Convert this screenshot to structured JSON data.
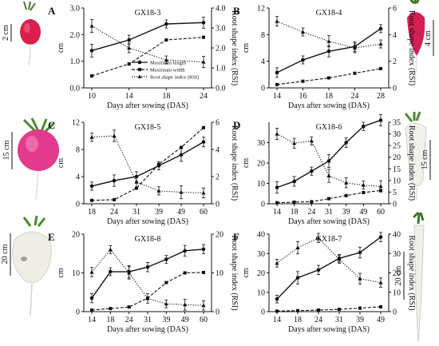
{
  "colors": {
    "line": "#111111",
    "background": "#ffffff"
  },
  "legend": [
    "Maximum length",
    "Maximum width",
    "Root shape index (RSI)"
  ],
  "photos": [
    {
      "scale": "2 cm",
      "root": "radish-small-red-icon"
    },
    {
      "scale": "4 cm",
      "root": "radish-long-red-icon"
    },
    {
      "scale": "15 cm",
      "root": "radish-round-pink-icon"
    },
    {
      "scale": "15 cm",
      "root": "radish-white-long-icon"
    },
    {
      "scale": "20 cm",
      "root": "radish-white-round-icon"
    },
    {
      "scale": "20 cm",
      "root": "radish-white-very-long-icon"
    }
  ],
  "chart_data": [
    {
      "type": "line",
      "panel_letter": "A",
      "title": "GX18-3",
      "xlabel": "Days after sowing (DAS)",
      "ylabel": "cm",
      "y2label": "Root shape index (RSI)",
      "x": [
        "10",
        "14",
        "18",
        "24"
      ],
      "ylim": [
        0,
        3.0
      ],
      "yticks": [
        "0.0",
        "1.0",
        "2.0",
        "3.0"
      ],
      "y2lim": [
        0,
        4.0
      ],
      "y2ticks": [
        "0.0",
        "1.0",
        "2.0",
        "3.0",
        "4.0"
      ],
      "legend_position": "center-right",
      "series": [
        {
          "name": "Maximum length",
          "axis": "left",
          "style": "solid",
          "marker": "circle",
          "values": [
            1.4,
            1.8,
            2.4,
            2.45
          ]
        },
        {
          "name": "Maximum width",
          "axis": "left",
          "style": "dashed",
          "marker": "square",
          "values": [
            0.45,
            0.9,
            1.8,
            1.9
          ]
        },
        {
          "name": "Root shape index (RSI)",
          "axis": "right",
          "style": "dotted",
          "marker": "triangle",
          "values": [
            3.1,
            2.0,
            1.4,
            1.3
          ]
        }
      ]
    },
    {
      "type": "line",
      "panel_letter": "B",
      "title": "GX18-4",
      "xlabel": "Days after sowing (DAS)",
      "ylabel": "cm",
      "y2label": "Root shape index (RSI)",
      "x": [
        "14",
        "16",
        "18",
        "24",
        "28"
      ],
      "ylim": [
        0,
        12
      ],
      "yticks": [
        "0",
        "4",
        "8",
        "12"
      ],
      "y2lim": [
        0,
        6
      ],
      "y2ticks": [
        "0",
        "2",
        "4",
        "6"
      ],
      "series": [
        {
          "name": "Maximum length",
          "axis": "left",
          "style": "solid",
          "marker": "circle",
          "values": [
            2.3,
            4.2,
            5.5,
            6.2,
            8.9
          ]
        },
        {
          "name": "Maximum width",
          "axis": "left",
          "style": "dashed",
          "marker": "square",
          "values": [
            0.5,
            1.0,
            1.5,
            2.2,
            2.9
          ]
        },
        {
          "name": "Root shape index (RSI)",
          "axis": "right",
          "style": "dotted",
          "marker": "triangle",
          "values": [
            5.0,
            4.2,
            3.5,
            3.0,
            3.3
          ]
        }
      ]
    },
    {
      "type": "line",
      "panel_letter": "C",
      "title": "GX18-5",
      "xlabel": "Days after sowing (DAS)",
      "ylabel": "cm",
      "y2label": "Root shape index (RSI)",
      "x": [
        "18",
        "24",
        "31",
        "39",
        "49",
        "60"
      ],
      "ylim": [
        0,
        12
      ],
      "yticks": [
        "0",
        "4",
        "8",
        "12"
      ],
      "y2lim": [
        0,
        6
      ],
      "y2ticks": [
        "0",
        "2",
        "4",
        "6"
      ],
      "series": [
        {
          "name": "Maximum length",
          "axis": "left",
          "style": "solid",
          "marker": "circle",
          "values": [
            2.6,
            3.4,
            4.0,
            5.6,
            7.2,
            9.1
          ]
        },
        {
          "name": "Maximum width",
          "axis": "left",
          "style": "dashed",
          "marker": "square",
          "values": [
            0.5,
            0.6,
            2.3,
            5.8,
            8.3,
            11.2
          ]
        },
        {
          "name": "Root shape index (RSI)",
          "axis": "right",
          "style": "dotted",
          "marker": "triangle",
          "values": [
            4.9,
            5.0,
            1.6,
            0.95,
            0.85,
            0.8
          ]
        }
      ]
    },
    {
      "type": "line",
      "panel_letter": "D",
      "title": "GX18-6",
      "xlabel": "Days after sowing (DAS)",
      "ylabel": "cm",
      "y2label": "Root shape index (RSI)",
      "x": [
        "14",
        "18",
        "24",
        "31",
        "39",
        "49",
        "60"
      ],
      "ylim": [
        0,
        40
      ],
      "yticks": [
        "0",
        "10",
        "20",
        "30"
      ],
      "y2lim": [
        0,
        35
      ],
      "y2ticks": [
        "0",
        "5",
        "10",
        "15",
        "20",
        "25",
        "30",
        "35"
      ],
      "series": [
        {
          "name": "Maximum length",
          "axis": "left",
          "style": "solid",
          "marker": "circle",
          "values": [
            8,
            11,
            16,
            21,
            30,
            38,
            41
          ]
        },
        {
          "name": "Maximum width",
          "axis": "left",
          "style": "dashed",
          "marker": "square",
          "values": [
            0.5,
            0.8,
            1.0,
            2.5,
            4.0,
            5.5,
            6.5
          ]
        },
        {
          "name": "Root shape index (RSI)",
          "axis": "right",
          "style": "dotted",
          "marker": "triangle",
          "values": [
            30,
            26,
            27,
            12,
            9,
            8,
            7.5
          ]
        }
      ]
    },
    {
      "type": "line",
      "panel_letter": "E",
      "title": "GX18-8",
      "xlabel": "Days after sowing (DAS)",
      "ylabel": "cm",
      "y2label": "Root shape index (RSI)",
      "x": [
        "14",
        "18",
        "24",
        "31",
        "39",
        "49",
        "60"
      ],
      "ylim": [
        0,
        20
      ],
      "yticks": [
        "0",
        "10",
        "20"
      ],
      "y2lim": [
        0,
        20
      ],
      "y2ticks": [
        "0",
        "10",
        "20"
      ],
      "series": [
        {
          "name": "Maximum length",
          "axis": "left",
          "style": "solid",
          "marker": "circle",
          "values": [
            3.5,
            10.3,
            10.3,
            11.5,
            13.5,
            15.7,
            16.1
          ]
        },
        {
          "name": "Maximum width",
          "axis": "left",
          "style": "dashed",
          "marker": "square",
          "values": [
            0.4,
            0.8,
            1.2,
            3.5,
            7.5,
            10.0,
            10.1
          ]
        },
        {
          "name": "Root shape index (RSI)",
          "axis": "right",
          "style": "dotted",
          "marker": "triangle",
          "values": [
            10.2,
            16.0,
            10.0,
            3.4,
            2.0,
            1.8,
            1.6
          ]
        }
      ]
    },
    {
      "type": "line",
      "panel_letter": "F",
      "title": "GX18-7",
      "xlabel": "Days after sowing (DAS)",
      "ylabel": "cm",
      "y2label": "Root shape index (RSI)",
      "x": [
        "14",
        "18",
        "24",
        "31",
        "39",
        "49"
      ],
      "ylim": [
        0,
        40
      ],
      "yticks": [
        "0",
        "10",
        "20",
        "30",
        "40"
      ],
      "y2lim": [
        0,
        40
      ],
      "y2ticks": [
        "0",
        "10",
        "20",
        "30",
        "40"
      ],
      "series": [
        {
          "name": "Maximum length",
          "axis": "left",
          "style": "solid",
          "marker": "circle",
          "values": [
            6.5,
            17.5,
            21.5,
            27.5,
            30.5,
            38.5
          ]
        },
        {
          "name": "Maximum width",
          "axis": "left",
          "style": "dashed",
          "marker": "square",
          "values": [
            0.3,
            0.5,
            0.8,
            1.2,
            1.8,
            2.5
          ]
        },
        {
          "name": "Root shape index (RSI)",
          "axis": "right",
          "style": "dotted",
          "marker": "triangle",
          "values": [
            25,
            33,
            38,
            27,
            17,
            15
          ]
        }
      ]
    }
  ]
}
